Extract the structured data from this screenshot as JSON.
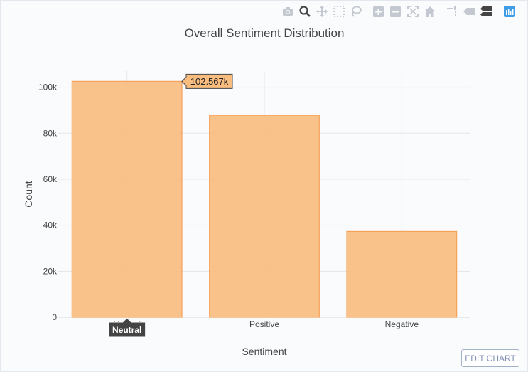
{
  "colors": {
    "bar_fill": "#f9bd80",
    "bar_stroke": "#f5a25a",
    "grid": "#e6e6e6",
    "text": "#444444",
    "hover_bg": "#f9bd80",
    "xhover_bg": "#444444",
    "edit_border": "#a2b1c6",
    "edit_text": "#7f8fb5",
    "modebar_icon": "#c4c8d0",
    "plotly_logo": "#3f9de5"
  },
  "modebar": {
    "icons": [
      "camera-icon",
      "zoom-icon",
      "pan-icon",
      "box-select-icon",
      "lasso-icon",
      "zoom-in-icon",
      "zoom-out-icon",
      "autoscale-icon",
      "home-icon",
      "spike-lines-icon",
      "hover-closest-icon",
      "hover-compare-icon",
      "plotly-logo-icon"
    ]
  },
  "hover": {
    "value_label": "102.567k",
    "category_label": "Neutral"
  },
  "edit_chart": {
    "label": "EDIT CHART"
  },
  "chart_data": {
    "type": "bar",
    "title": "Overall Sentiment Distribution",
    "xlabel": "Sentiment",
    "ylabel": "Count",
    "categories": [
      "Neutral",
      "Positive",
      "Negative"
    ],
    "values": [
      102567,
      87800,
      37300
    ],
    "ylim": [
      0,
      107000
    ],
    "yticks": [
      0,
      20000,
      40000,
      60000,
      80000,
      100000
    ],
    "ytick_labels": [
      "0",
      "20k",
      "40k",
      "60k",
      "80k",
      "100k"
    ],
    "grid": true,
    "legend": "none"
  }
}
